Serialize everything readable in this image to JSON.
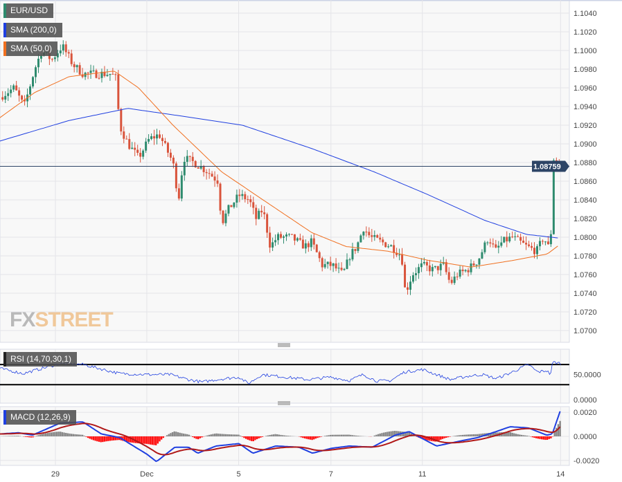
{
  "legend": {
    "symbol": "EUR/USD",
    "sma200": "SMA (200,0)",
    "sma50": "SMA (50,0)",
    "rsi": "RSI (14,70,30,1)",
    "macd": "MACD (12,26,9)"
  },
  "logo": {
    "a": "FX",
    "b": "STREET"
  },
  "colors": {
    "up": "#2e8b6e",
    "down": "#d9533b",
    "sma200": "#1f3fe0",
    "sma50": "#f07020",
    "macd": "#1f3fe0",
    "signal": "#b01818",
    "hist_up": "#888888",
    "hist_down": "#ff1010",
    "price_tag": "#2c4466"
  },
  "chart_data": {
    "type": "candlestick",
    "last_price": "1.08759",
    "last_price_value": 1.08759,
    "y_ticks": [
      "1.1040",
      "1.1020",
      "1.1000",
      "1.0980",
      "1.0960",
      "1.0940",
      "1.0920",
      "1.0900",
      "1.0880",
      "1.0860",
      "1.0840",
      "1.0820",
      "1.0800",
      "1.0780",
      "1.0760",
      "1.0740",
      "1.0720",
      "1.0700"
    ],
    "ylim": [
      1.07,
      1.104
    ],
    "x_ticks": [
      {
        "t": 0,
        "label": "29"
      },
      {
        "t": 1.99,
        "label": "Dec"
      },
      {
        "t": 3.99,
        "label": "5"
      },
      {
        "t": 6.0,
        "label": "7"
      },
      {
        "t": 7.99,
        "label": "11"
      },
      {
        "t": 11.0,
        "label": "14"
      }
    ],
    "price_path": [
      [
        -1.21,
        1.095
      ],
      [
        -0.9,
        1.096
      ],
      [
        -0.68,
        1.094
      ],
      [
        -0.45,
        1.098
      ],
      [
        -0.3,
        1.1
      ],
      [
        -0.08,
        1.099
      ],
      [
        0.15,
        1.1005
      ],
      [
        0.38,
        1.0985
      ],
      [
        0.6,
        1.0975
      ],
      [
        0.9,
        1.0975
      ],
      [
        1.21,
        1.0975
      ],
      [
        1.33,
        1.097
      ],
      [
        1.39,
        1.092
      ],
      [
        1.58,
        1.09
      ],
      [
        1.81,
        1.0885
      ],
      [
        2.04,
        1.0905
      ],
      [
        2.26,
        1.091
      ],
      [
        2.41,
        1.0895
      ],
      [
        2.56,
        1.088
      ],
      [
        2.68,
        1.084
      ],
      [
        2.79,
        1.0885
      ],
      [
        3.02,
        1.088
      ],
      [
        3.32,
        1.087
      ],
      [
        3.54,
        1.086
      ],
      [
        3.62,
        1.0815
      ],
      [
        3.77,
        1.083
      ],
      [
        4.0,
        1.0845
      ],
      [
        4.22,
        1.084
      ],
      [
        4.37,
        1.082
      ],
      [
        4.52,
        1.083
      ],
      [
        4.68,
        1.079
      ],
      [
        4.83,
        1.08
      ],
      [
        5.13,
        1.08
      ],
      [
        5.43,
        1.079
      ],
      [
        5.58,
        1.0795
      ],
      [
        5.81,
        1.077
      ],
      [
        6.03,
        1.077
      ],
      [
        6.26,
        1.076
      ],
      [
        6.41,
        1.078
      ],
      [
        6.56,
        1.079
      ],
      [
        6.71,
        1.081
      ],
      [
        6.86,
        1.08
      ],
      [
        7.09,
        1.0795
      ],
      [
        7.32,
        1.079
      ],
      [
        7.54,
        1.078
      ],
      [
        7.62,
        1.074
      ],
      [
        7.77,
        1.076
      ],
      [
        7.99,
        1.077
      ],
      [
        8.22,
        1.0765
      ],
      [
        8.45,
        1.077
      ],
      [
        8.6,
        1.075
      ],
      [
        8.75,
        1.076
      ],
      [
        8.97,
        1.0765
      ],
      [
        9.2,
        1.0775
      ],
      [
        9.43,
        1.08
      ],
      [
        9.58,
        1.0785
      ],
      [
        9.73,
        1.0795
      ],
      [
        9.95,
        1.08
      ],
      [
        10.26,
        1.079
      ],
      [
        10.48,
        1.0785
      ],
      [
        10.63,
        1.08
      ],
      [
        10.78,
        1.0785
      ],
      [
        10.83,
        1.0885
      ],
      [
        11.01,
        1.0876
      ]
    ],
    "sma200": [
      [
        -1.21,
        1.0903
      ],
      [
        0.3,
        1.0925
      ],
      [
        1.58,
        1.0938
      ],
      [
        2.71,
        1.093
      ],
      [
        4.07,
        1.092
      ],
      [
        5.58,
        1.0895
      ],
      [
        6.94,
        1.087
      ],
      [
        8.14,
        1.0845
      ],
      [
        9.35,
        1.0818
      ],
      [
        10.26,
        1.0803
      ],
      [
        10.98,
        1.0799
      ]
    ],
    "sma50": [
      [
        -1.21,
        1.0928
      ],
      [
        -0.45,
        1.0955
      ],
      [
        0.3,
        1.0972
      ],
      [
        1.28,
        1.0978
      ],
      [
        1.81,
        1.096
      ],
      [
        2.56,
        1.092
      ],
      [
        3.62,
        1.087
      ],
      [
        4.52,
        1.084
      ],
      [
        5.58,
        1.0805
      ],
      [
        6.33,
        1.079
      ],
      [
        7.24,
        1.0785
      ],
      [
        8.14,
        1.0775
      ],
      [
        9.05,
        1.0768
      ],
      [
        9.95,
        1.0775
      ],
      [
        10.71,
        1.0782
      ],
      [
        10.98,
        1.0792
      ]
    ],
    "rsi": {
      "ticks": [
        "50.0000",
        "0.0000"
      ],
      "levels": [
        70,
        30
      ],
      "path": [
        [
          -1.21,
          62
        ],
        [
          -0.7,
          52
        ],
        [
          -0.3,
          62
        ],
        [
          0.1,
          72
        ],
        [
          0.6,
          70
        ],
        [
          1.4,
          52
        ],
        [
          2.0,
          50
        ],
        [
          2.5,
          50
        ],
        [
          2.9,
          40
        ],
        [
          3.2,
          35
        ],
        [
          3.5,
          40
        ],
        [
          4.0,
          45
        ],
        [
          4.2,
          32
        ],
        [
          4.5,
          50
        ],
        [
          5.0,
          45
        ],
        [
          5.5,
          40
        ],
        [
          6.0,
          45
        ],
        [
          6.4,
          38
        ],
        [
          6.7,
          50
        ],
        [
          7.0,
          37
        ],
        [
          7.3,
          38
        ],
        [
          7.6,
          55
        ],
        [
          8.0,
          60
        ],
        [
          8.3,
          50
        ],
        [
          8.6,
          40
        ],
        [
          9.0,
          47
        ],
        [
          9.3,
          50
        ],
        [
          9.6,
          42
        ],
        [
          9.9,
          53
        ],
        [
          10.3,
          70
        ],
        [
          10.5,
          55
        ],
        [
          10.7,
          58
        ],
        [
          10.78,
          50
        ],
        [
          10.83,
          75
        ],
        [
          11.01,
          72
        ]
      ]
    },
    "macd": {
      "ticks": [
        "0.0020",
        "0.0000",
        "-0.0020"
      ],
      "path": [
        [
          -1.21,
          0.0002
        ],
        [
          -0.8,
          0.0003
        ],
        [
          -0.5,
          0.0001
        ],
        [
          0.1,
          0.0011
        ],
        [
          0.6,
          0.0012
        ],
        [
          1.0,
          0.0002
        ],
        [
          1.4,
          -0.0001
        ],
        [
          2.0,
          -0.0015
        ],
        [
          2.2,
          -0.0021
        ],
        [
          2.6,
          -0.0009
        ],
        [
          2.9,
          -0.0009
        ],
        [
          3.1,
          -0.0014
        ],
        [
          3.5,
          -0.0008
        ],
        [
          4.0,
          -0.0006
        ],
        [
          4.3,
          -0.0014
        ],
        [
          4.8,
          -0.0008
        ],
        [
          5.3,
          -0.0009
        ],
        [
          5.6,
          -0.0014
        ],
        [
          6.0,
          -0.001
        ],
        [
          6.4,
          -0.0008
        ],
        [
          6.9,
          -0.0009
        ],
        [
          7.4,
          0.0001
        ],
        [
          7.7,
          0.0004
        ],
        [
          8.1,
          -0.0004
        ],
        [
          8.3,
          -0.0008
        ],
        [
          8.8,
          -0.0004
        ],
        [
          9.2,
          -0.0001
        ],
        [
          9.6,
          0.0004
        ],
        [
          9.9,
          0.0008
        ],
        [
          10.3,
          0.0007
        ],
        [
          10.7,
          0.0001
        ],
        [
          10.82,
          0.0002
        ],
        [
          11.01,
          0.0023
        ]
      ]
    }
  }
}
